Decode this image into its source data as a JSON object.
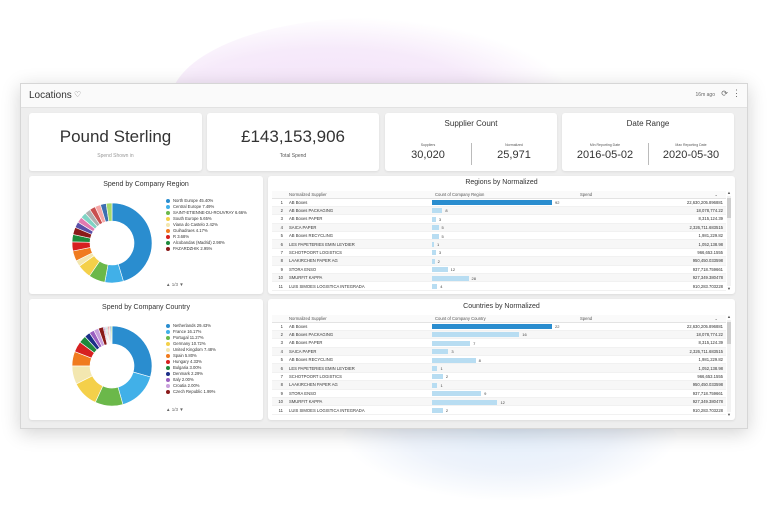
{
  "colors": {
    "accent": "#2a8dcf",
    "bar_light": "#b8ddf2"
  },
  "window": {
    "title": "Locations",
    "updated": "16m ago",
    "heart_icon": "heart-icon",
    "refresh_icon": "refresh-icon",
    "more_icon": "more-vert-icon"
  },
  "currency": {
    "value": "Pound Sterling",
    "label": "Spend Shown in"
  },
  "total_spend": {
    "value": "£143,153,906",
    "label": "Total Spend"
  },
  "supplier_count": {
    "title": "Supplier Count",
    "left_label": "Suppliers",
    "left_value": "30,020",
    "right_label": "Normalized",
    "right_value": "25,971"
  },
  "date_range": {
    "title": "Date Range",
    "left_label": "Min Reporting Date",
    "left_value": "2016-05-02",
    "right_label": "Max Reporting Date",
    "right_value": "2020-05-30"
  },
  "region_chart": {
    "title": "Spend by Company Region",
    "pager": "1/3",
    "legend": [
      {
        "label": "North Europe 45.40%",
        "color": "#2a8dcf"
      },
      {
        "label": "Central Europe 7.49%",
        "color": "#41b0e8"
      },
      {
        "label": "SAINT-ETIENNE-DU-ROUVRAY 6.66%",
        "color": "#6bb84a"
      },
      {
        "label": "South Europe 5.65%",
        "color": "#f4d04a"
      },
      {
        "label": "Viana do Castelo 2.42%",
        "color": "#f3e7b0"
      },
      {
        "label": "Guihadraes 4.17%",
        "color": "#f07b1f"
      },
      {
        "label": "R 3.68%",
        "color": "#d62020"
      },
      {
        "label": "Alcobandas (Madrid) 2.98%",
        "color": "#1e8a3c"
      },
      {
        "label": "PAZARDZHIK 2.95%",
        "color": "#8a1a1a"
      }
    ]
  },
  "country_chart": {
    "title": "Spend by Company Country",
    "pager": "1/3",
    "legend": [
      {
        "label": "Netherlands 29.43%",
        "color": "#2a8dcf"
      },
      {
        "label": "France 16.17%",
        "color": "#41b0e8"
      },
      {
        "label": "Portugal 11.27%",
        "color": "#6bb84a"
      },
      {
        "label": "Germany 10.72%",
        "color": "#f4d04a"
      },
      {
        "label": "United Kingdom 7.48%",
        "color": "#f3e7b0"
      },
      {
        "label": "Spain 5.80%",
        "color": "#f07b1f"
      },
      {
        "label": "Hungary 4.33%",
        "color": "#d62020"
      },
      {
        "label": "Bulgaria 3.00%",
        "color": "#1e8a3c"
      },
      {
        "label": "Denmark 2.29%",
        "color": "#1b2f88"
      },
      {
        "label": "Italy 2.00%",
        "color": "#9b5fc0"
      },
      {
        "label": "Croatia 2.00%",
        "color": "#c8a0dc"
      },
      {
        "label": "Czech Republic 1.99%",
        "color": "#8a1a1a"
      }
    ]
  },
  "regions_table": {
    "title": "Regions by Normalized",
    "columns": [
      "Normalized Supplier",
      "Count of Company Region",
      "Spend"
    ],
    "rows": [
      {
        "idx": "1",
        "supplier": "AB Boxes",
        "count": 92,
        "spend": "22,630,205.896881"
      },
      {
        "idx": "2",
        "supplier": "AB Boxes PACKAGING",
        "count": 8,
        "spend": "18,078,774.22"
      },
      {
        "idx": "3",
        "supplier": "AB Boxes PAPER",
        "count": 3,
        "spend": "8,315,124.39"
      },
      {
        "idx": "4",
        "supplier": "SAICA PAPER",
        "count": 5,
        "spend": "2,326,711.683515"
      },
      {
        "idx": "5",
        "supplier": "AB Boxes RECYCLING",
        "count": 5,
        "spend": "1,981,229.82"
      },
      {
        "idx": "6",
        "supplier": "LES PAPETERIES EMIN LEYDIER",
        "count": 1,
        "spend": "1,052,138.98"
      },
      {
        "idx": "7",
        "supplier": "SCHOTPOORT LOGISTICS",
        "count": 3,
        "spend": "966,653.1555"
      },
      {
        "idx": "8",
        "supplier": "LAAKIRCHEN PAPER AG",
        "count": 2,
        "spend": "950,450.033598"
      },
      {
        "idx": "9",
        "supplier": "STORA ENSO",
        "count": 12,
        "spend": "937,718.759661"
      },
      {
        "idx": "10",
        "supplier": "SMURFIT KAPPA",
        "count": 28,
        "spend": "927,349.380478"
      },
      {
        "idx": "11",
        "supplier": "LUIS SIMOES LOGISTICA INTEGRADA",
        "count": 4,
        "spend": "910,283.703228"
      }
    ]
  },
  "countries_table": {
    "title": "Countries by Normalized",
    "columns": [
      "Normalized Supplier",
      "Count of Company Country",
      "Spend"
    ],
    "rows": [
      {
        "idx": "1",
        "supplier": "AB Boxes",
        "count": 22,
        "spend": "22,630,205.896881"
      },
      {
        "idx": "2",
        "supplier": "AB Boxes PACKAGING",
        "count": 16,
        "spend": "18,078,774.22"
      },
      {
        "idx": "3",
        "supplier": "AB Boxes PAPER",
        "count": 7,
        "spend": "8,315,124.39"
      },
      {
        "idx": "4",
        "supplier": "SAICA PAPER",
        "count": 3,
        "spend": "2,326,711.683515"
      },
      {
        "idx": "5",
        "supplier": "AB Boxes RECYCLING",
        "count": 8,
        "spend": "1,981,229.82"
      },
      {
        "idx": "6",
        "supplier": "LES PAPETERIES EMIN LEYDIER",
        "count": 1,
        "spend": "1,052,138.98"
      },
      {
        "idx": "7",
        "supplier": "SCHOTPOORT LOGISTICS",
        "count": 2,
        "spend": "966,653.1555"
      },
      {
        "idx": "8",
        "supplier": "LAAKIRCHEN PAPER AG",
        "count": 1,
        "spend": "950,450.033598"
      },
      {
        "idx": "9",
        "supplier": "STORA ENSO",
        "count": 9,
        "spend": "937,718.759661"
      },
      {
        "idx": "10",
        "supplier": "SMURFIT KAPPA",
        "count": 12,
        "spend": "927,349.380478"
      },
      {
        "idx": "11",
        "supplier": "LUIS SIMOES LOGISTICA INTEGRADA",
        "count": 2,
        "spend": "910,283.703228"
      }
    ]
  }
}
